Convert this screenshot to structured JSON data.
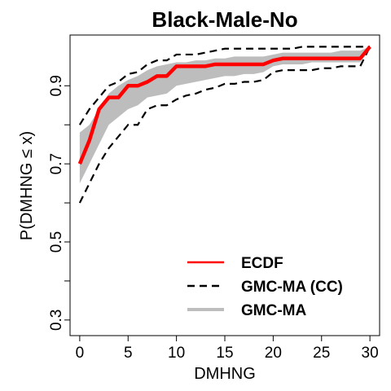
{
  "chart_data": {
    "type": "line",
    "title": "Black-Male-No",
    "xlabel": "DMHNG",
    "ylabel": "P(DMHNG ≤ x)",
    "xlim": [
      -1,
      31
    ],
    "ylim": [
      0.26,
      1.03
    ],
    "xticks": [
      0,
      5,
      10,
      15,
      20,
      25,
      30
    ],
    "yticks": [
      0.3,
      0.4,
      0.5,
      0.6,
      0.7,
      0.8,
      0.9
    ],
    "ytick_labels": [
      "0.3",
      "",
      "0.5",
      "",
      "0.7",
      "",
      "0.9"
    ],
    "grid": false,
    "legend_position": "bottom-right",
    "series": [
      {
        "name": "ECDF",
        "style": "solid",
        "color": "#ff0000",
        "x": [
          0,
          1,
          2,
          3,
          4,
          5,
          6,
          7,
          8,
          9,
          10,
          11,
          12,
          13,
          14,
          15,
          16,
          17,
          18,
          19,
          20,
          21,
          22,
          23,
          24,
          25,
          26,
          27,
          28,
          29,
          30
        ],
        "y": [
          0.7,
          0.76,
          0.84,
          0.87,
          0.87,
          0.9,
          0.9,
          0.91,
          0.925,
          0.925,
          0.95,
          0.95,
          0.95,
          0.95,
          0.955,
          0.955,
          0.955,
          0.955,
          0.955,
          0.955,
          0.965,
          0.97,
          0.97,
          0.97,
          0.97,
          0.97,
          0.97,
          0.97,
          0.97,
          0.97,
          1.0
        ]
      },
      {
        "name": "GMC-MA (CC)",
        "style": "dashed",
        "color": "#000000",
        "x": [
          0,
          1,
          2,
          3,
          4,
          5,
          6,
          7,
          8,
          9,
          10,
          11,
          12,
          13,
          14,
          15,
          16,
          17,
          18,
          19,
          20,
          21,
          22,
          23,
          24,
          25,
          26,
          27,
          28,
          29,
          30
        ],
        "upper": [
          0.8,
          0.84,
          0.87,
          0.9,
          0.91,
          0.93,
          0.935,
          0.955,
          0.965,
          0.965,
          0.98,
          0.98,
          0.98,
          0.985,
          0.99,
          0.995,
          0.995,
          0.995,
          0.995,
          0.995,
          0.995,
          0.995,
          0.995,
          1.0,
          1.0,
          1.0,
          1.0,
          1.0,
          1.0,
          1.0,
          1.0
        ],
        "lower": [
          0.6,
          0.65,
          0.7,
          0.74,
          0.77,
          0.8,
          0.8,
          0.84,
          0.85,
          0.85,
          0.865,
          0.875,
          0.88,
          0.89,
          0.895,
          0.905,
          0.905,
          0.91,
          0.91,
          0.915,
          0.935,
          0.94,
          0.94,
          0.94,
          0.94,
          0.945,
          0.945,
          0.95,
          0.95,
          0.95,
          1.0
        ]
      },
      {
        "name": "GMC-MA",
        "style": "band",
        "color": "#bdbdbd",
        "x": [
          0,
          1,
          2,
          3,
          4,
          5,
          6,
          7,
          8,
          9,
          10,
          11,
          12,
          13,
          14,
          15,
          16,
          17,
          18,
          19,
          20,
          21,
          22,
          23,
          24,
          25,
          26,
          27,
          28,
          29,
          30
        ],
        "upper": [
          0.78,
          0.8,
          0.84,
          0.88,
          0.9,
          0.915,
          0.925,
          0.94,
          0.95,
          0.955,
          0.96,
          0.96,
          0.965,
          0.965,
          0.97,
          0.97,
          0.975,
          0.975,
          0.975,
          0.975,
          0.98,
          0.985,
          0.985,
          0.985,
          0.985,
          0.985,
          0.985,
          0.99,
          0.99,
          0.99,
          1.0
        ],
        "lower": [
          0.65,
          0.7,
          0.75,
          0.8,
          0.82,
          0.84,
          0.85,
          0.87,
          0.875,
          0.88,
          0.9,
          0.905,
          0.91,
          0.915,
          0.92,
          0.925,
          0.925,
          0.93,
          0.93,
          0.935,
          0.95,
          0.955,
          0.955,
          0.955,
          0.96,
          0.96,
          0.96,
          0.96,
          0.96,
          0.96,
          1.0
        ]
      }
    ]
  }
}
